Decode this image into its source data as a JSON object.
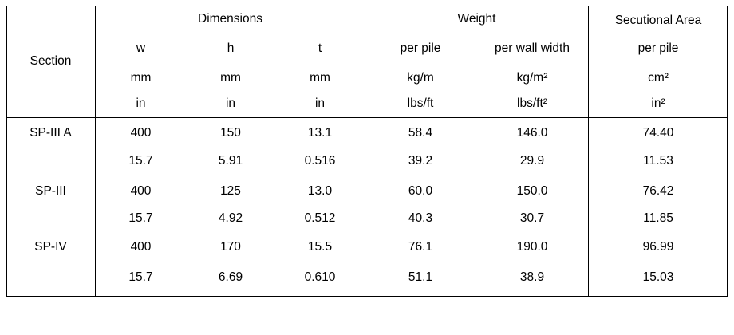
{
  "table": {
    "header": {
      "section": "Section",
      "dimensions": "Dimensions",
      "weight": "Weight",
      "sectional_area": "Secutional Area",
      "columns": {
        "w": "w",
        "h": "h",
        "t": "t",
        "per_pile": "per pile",
        "per_wall_width": "per wall width",
        "area_per_pile": "per pile"
      },
      "units_metric": [
        "mm",
        "mm",
        "mm",
        "kg/m",
        "kg/m²",
        "cm²"
      ],
      "units_imperial": [
        "in",
        "in",
        "in",
        "lbs/ft",
        "lbs/ft²",
        "in²"
      ]
    },
    "sections": [
      {
        "name": "SP-III A",
        "metric": [
          "400",
          "150",
          "13.1",
          "58.4",
          "146.0",
          "74.40"
        ],
        "imperial": [
          "15.7",
          "5.91",
          "0.516",
          "39.2",
          "29.9",
          "11.53"
        ]
      },
      {
        "name": "SP-III",
        "metric": [
          "400",
          "125",
          "13.0",
          "60.0",
          "150.0",
          "76.42"
        ],
        "imperial": [
          "15.7",
          "4.92",
          "0.512",
          "40.3",
          "30.7",
          "11.85"
        ]
      },
      {
        "name": "SP-IV",
        "metric": [
          "400",
          "170",
          "15.5",
          "76.1",
          "190.0",
          "96.99"
        ],
        "imperial": [
          "15.7",
          "6.69",
          "0.610",
          "51.1",
          "38.9",
          "15.03"
        ]
      }
    ]
  }
}
